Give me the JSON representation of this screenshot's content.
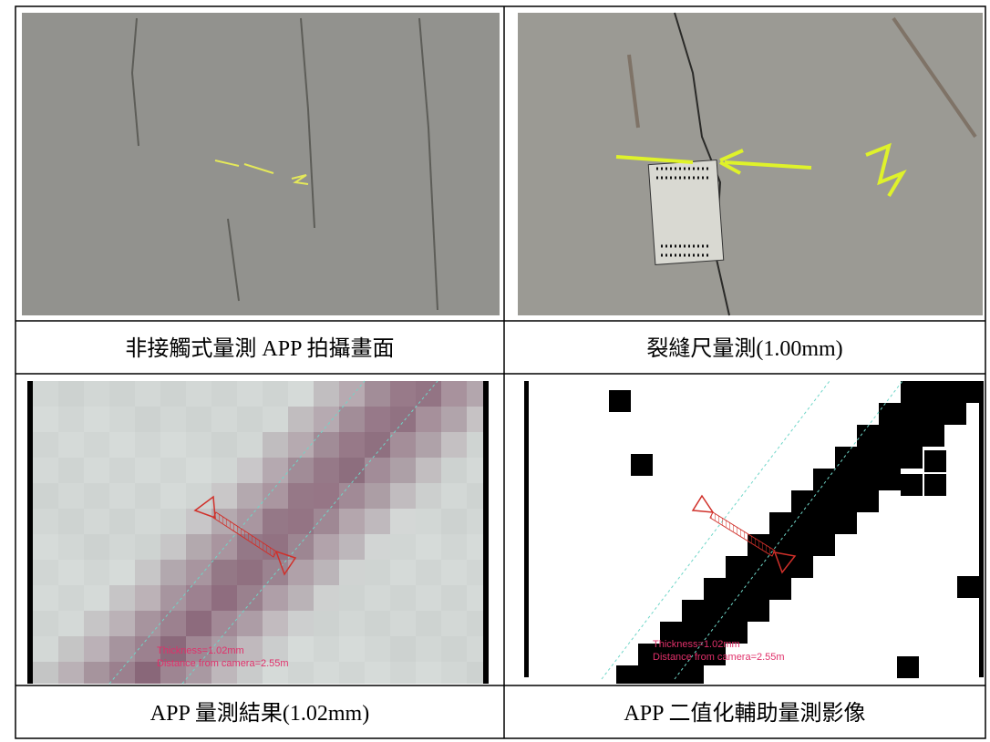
{
  "figures": [
    {
      "caption": "非接觸式量測 APP 拍攝畫面"
    },
    {
      "caption": "裂縫尺量測(1.00mm)"
    },
    {
      "caption": "APP 量測結果(1.02mm)",
      "overlay": [
        "Thickness=1.02mm",
        "Distance from camera=2.55m"
      ]
    },
    {
      "caption": "APP 二值化輔助量測影像",
      "overlay": [
        "Thickness=1.02mm",
        "Distance from camera=2.55m"
      ]
    }
  ]
}
